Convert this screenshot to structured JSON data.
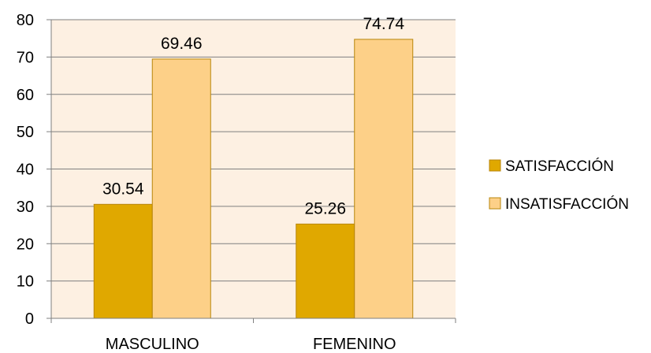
{
  "chart_data": {
    "type": "bar",
    "title": "",
    "xlabel": "",
    "ylabel": "",
    "categories": [
      "MASCULINO",
      "FEMENINO"
    ],
    "series": [
      {
        "name": "SATISFACCIÓN",
        "values": [
          30.54,
          25.26
        ],
        "value_labels": [
          "30.54",
          "25.26"
        ],
        "color": "#E0A800"
      },
      {
        "name": "INSATISFACCIÓN",
        "values": [
          69.46,
          74.74
        ],
        "value_labels": [
          "69.46",
          "74.74"
        ],
        "color": "#FDD088"
      }
    ],
    "ylim": [
      0,
      80
    ],
    "yticks": [
      0,
      10,
      20,
      30,
      40,
      50,
      60,
      70,
      80
    ],
    "ytick_labels": [
      "0",
      "10",
      "20",
      "30",
      "40",
      "50",
      "60",
      "70",
      "80"
    ],
    "grid": true,
    "plot_background": "#FDF0E2",
    "gridline_color": "#7F7F7F",
    "bar_border_color": "#B8860B",
    "legend_position": "right"
  }
}
